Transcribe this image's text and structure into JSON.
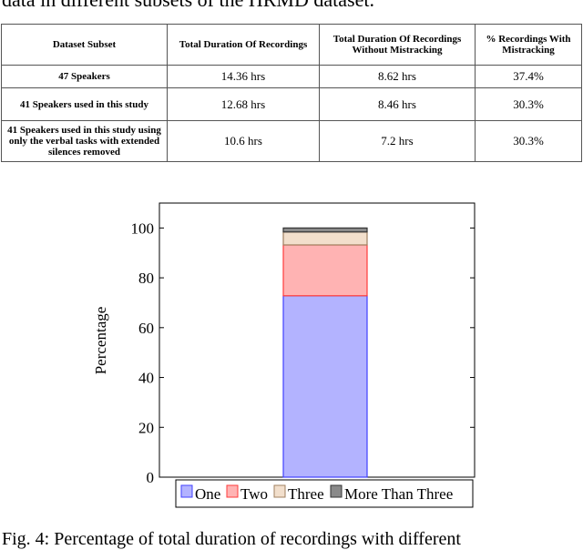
{
  "caption_top": "data in different subsets of the HRMD dataset.",
  "table": {
    "headers": [
      "Dataset Subset",
      "Total Duration Of Recordings",
      "Total Duration Of Recordings Without Mistracking",
      "% Recordings With Mistracking"
    ],
    "rows": [
      {
        "subset": "47 Speakers",
        "total": "14.36 hrs",
        "without": "8.62 hrs",
        "pct": "37.4%"
      },
      {
        "subset": "41 Speakers used in this study",
        "total": "12.68 hrs",
        "without": "8.46 hrs",
        "pct": "30.3%"
      },
      {
        "subset": "41 Speakers used in this study using only the verbal tasks with extended silences removed",
        "total": "10.6 hrs",
        "without": "7.2 hrs",
        "pct": "30.3%"
      }
    ]
  },
  "chart_data": {
    "type": "bar",
    "stacked": true,
    "categories": [
      ""
    ],
    "series": [
      {
        "name": "One",
        "values": [
          72.8
        ],
        "fill": "#b3b3ff",
        "stroke": "#4040ff"
      },
      {
        "name": "Two",
        "values": [
          20.4
        ],
        "fill": "#ffb3b3",
        "stroke": "#ff3b3b"
      },
      {
        "name": "Three",
        "values": [
          5.2
        ],
        "fill": "#f2dfcc",
        "stroke": "#a08060"
      },
      {
        "name": "More Than Three",
        "values": [
          1.6
        ],
        "fill": "#8a8a8a",
        "stroke": "#333333"
      }
    ],
    "ylabel": "Percentage",
    "ylim": [
      0,
      110
    ],
    "yticks": [
      0,
      20,
      40,
      60,
      80,
      100
    ],
    "grid": false,
    "legend": "bottom-center"
  },
  "caption_bottom": "Fig. 4: Percentage of total duration of recordings with different"
}
